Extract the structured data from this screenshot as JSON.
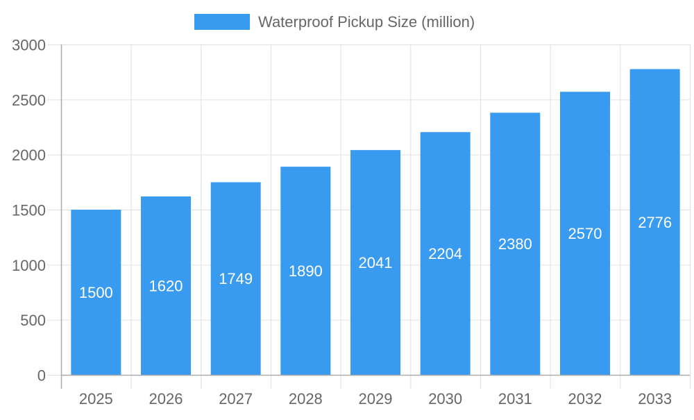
{
  "chart_data": {
    "type": "bar",
    "categories": [
      "2025",
      "2026",
      "2027",
      "2028",
      "2029",
      "2030",
      "2031",
      "2032",
      "2033"
    ],
    "series": [
      {
        "name": "Waterproof Pickup Size (million)",
        "values": [
          1500,
          1620,
          1749,
          1890,
          2041,
          2204,
          2380,
          2570,
          2776
        ],
        "color": "#399bef"
      }
    ],
    "ylim": [
      0,
      3000
    ],
    "yticks": [
      "0",
      "500",
      "1000",
      "1500",
      "2000",
      "2500",
      "3000"
    ],
    "grid": true,
    "legend": "top-center",
    "data_labels": true
  }
}
